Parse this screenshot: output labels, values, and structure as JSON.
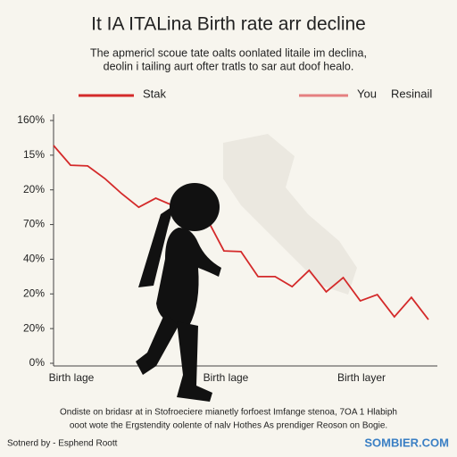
{
  "chart_data": {
    "type": "line",
    "title": "It IA ITALina Birth rate arr decline",
    "subtitle": [
      "The apmericl scoue tate oalts oonlated litaile im declina,",
      "deolin i tailing aurt ofter tratls to sar aut doof healo."
    ],
    "legend": [
      {
        "name": "Stak",
        "color": "#d42a2a"
      },
      {
        "name": "You",
        "color": "#e58080"
      }
    ],
    "legend_extra": "Resinail",
    "categories": [
      null,
      null,
      null,
      null,
      null,
      null,
      null,
      null,
      null,
      null,
      null,
      null,
      null,
      null,
      null,
      null,
      null,
      null,
      null,
      null,
      null,
      null,
      null
    ],
    "series": [
      {
        "color": "#d42a2a",
        "values": [
          6.28,
          5.71,
          5.69,
          5.33,
          4.89,
          4.5,
          4.76,
          4.55,
          4.5,
          4.17,
          3.24,
          3.22,
          2.5,
          2.5,
          2.21,
          2.68,
          2.06,
          2.47,
          1.8,
          1.98,
          1.34,
          1.9,
          1.26
        ]
      }
    ],
    "ylim": [
      0,
      7
    ],
    "yticks": [
      {
        "value": 7,
        "label": "160%"
      },
      {
        "value": 6,
        "label": "15%"
      },
      {
        "value": 5,
        "label": "20%"
      },
      {
        "value": 4,
        "label": "70%"
      },
      {
        "value": 3,
        "label": "40%"
      },
      {
        "value": 2,
        "label": "20%"
      },
      {
        "value": 1,
        "label": "20%"
      },
      {
        "value": 0,
        "label": "0%"
      }
    ],
    "x_labels": [
      "Birth lage",
      "Birth lage",
      "Birth layer"
    ],
    "caption": [
      "Ondiste on bridasr at in Stofroeciere mianetly forfoest Imfange stenoa, 7OA 1 Hlabiph",
      "ooot wote the Ergstendity oolente of nalv Hothes As prendiger Reoson on Bogie."
    ],
    "source": "Sotnerd by - Esphend Roott",
    "brand": "SOMBIER.COM"
  }
}
